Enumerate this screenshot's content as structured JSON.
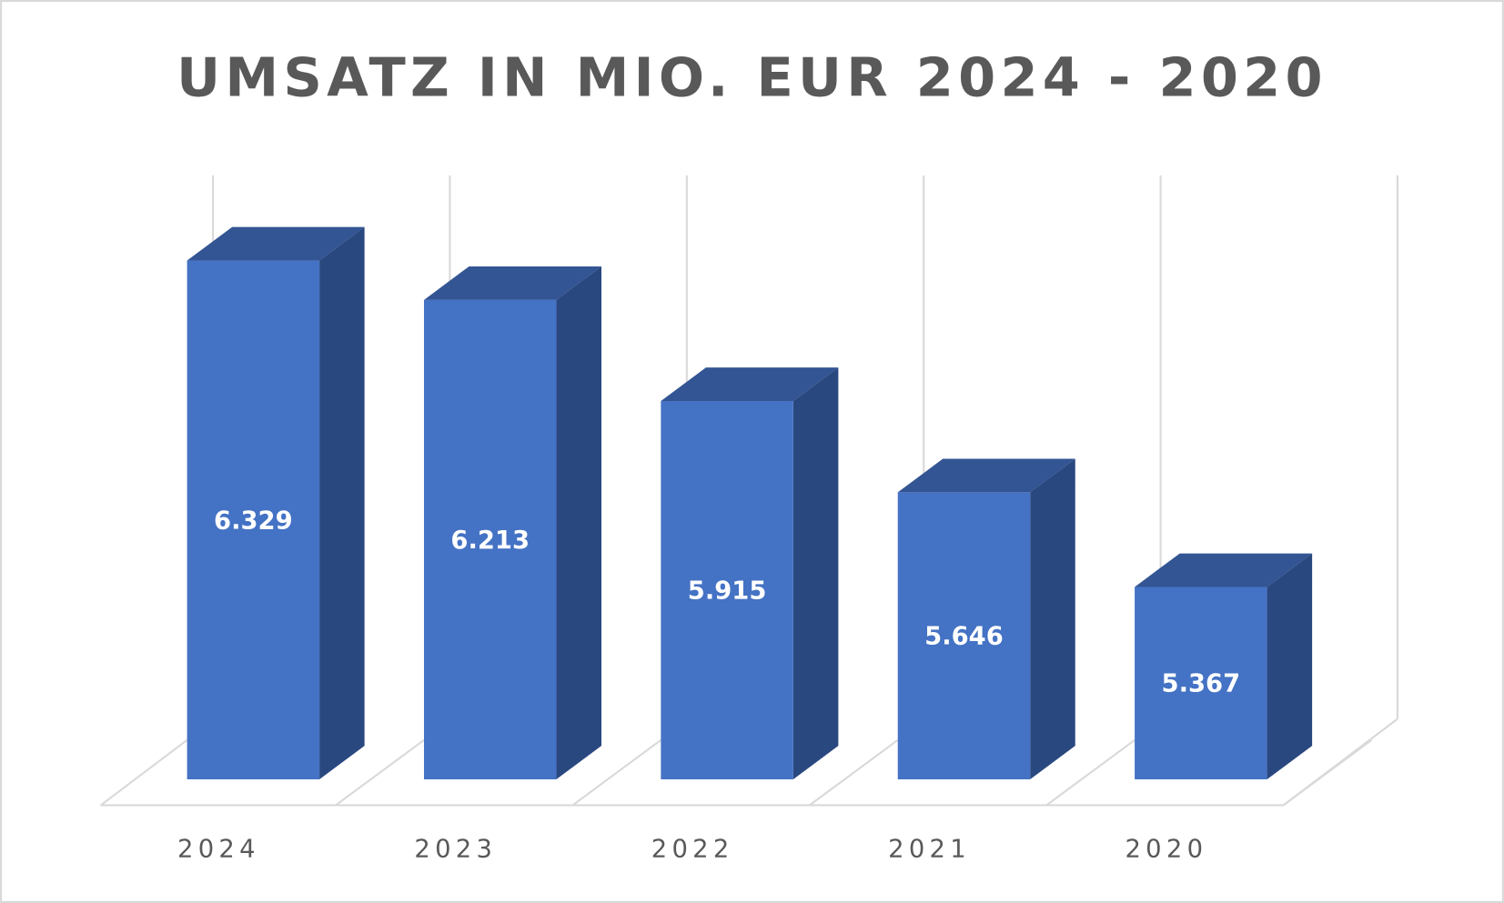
{
  "chart_data": {
    "type": "bar",
    "style": "3d-column",
    "title": "UMSATZ IN MIO. EUR 2024 - 2020",
    "categories": [
      "2024",
      "2023",
      "2022",
      "2021",
      "2020"
    ],
    "values": [
      6.329,
      6.213,
      5.915,
      5.646,
      5.367
    ],
    "data_labels": [
      "6.329",
      "6.213",
      "5.915",
      "5.646",
      "5.367"
    ],
    "xlabel": "",
    "ylabel": "",
    "ylim": [
      4.8,
      6.58
    ],
    "grid": "vertical",
    "colors": {
      "front": "#4472C4",
      "top": "#335593",
      "side": "#2A4880",
      "grid": "#D9D9D9",
      "text": "#595959"
    }
  }
}
